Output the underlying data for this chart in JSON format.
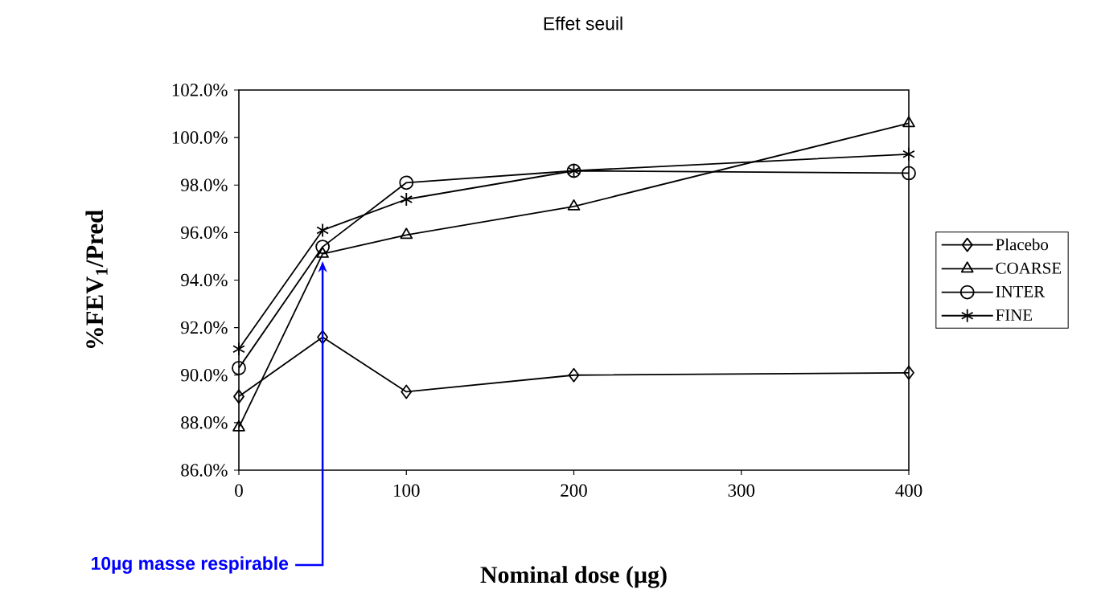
{
  "chart_data": {
    "type": "line",
    "title": "Effet seuil",
    "xlabel": "Nominal dose (µg)",
    "ylabel": "%FEV$_{1}$/Pred",
    "x": [
      0,
      50,
      100,
      200,
      400
    ],
    "series": [
      {
        "name": "Placebo",
        "color": "#000000",
        "marker": "diamond",
        "values": [
          89.1,
          91.6,
          89.3,
          90.0,
          90.1
        ]
      },
      {
        "name": "COARSE",
        "color": "#000000",
        "marker": "triangle",
        "values": [
          87.8,
          95.1,
          95.9,
          97.1,
          100.6
        ]
      },
      {
        "name": "INTER",
        "color": "#000000",
        "marker": "circle",
        "values": [
          90.3,
          95.4,
          98.1,
          98.6,
          98.5
        ]
      },
      {
        "name": "FINE",
        "color": "#000000",
        "marker": "cross",
        "values": [
          91.1,
          96.1,
          97.4,
          98.6,
          99.3
        ]
      }
    ],
    "xlim": [
      0,
      400
    ],
    "xticks": [
      0,
      100,
      200,
      300,
      400
    ],
    "ylim": [
      86,
      102
    ],
    "yticks": [
      {
        "value": 86,
        "label": "86.0%"
      },
      {
        "value": 88,
        "label": "88.0%"
      },
      {
        "value": 90,
        "label": "90.0%"
      },
      {
        "value": 92,
        "label": "92.0%"
      },
      {
        "value": 94,
        "label": "94.0%"
      },
      {
        "value": 96,
        "label": "96.0%"
      },
      {
        "value": 98,
        "label": "98.0%"
      },
      {
        "value": 100,
        "label": "100.0%"
      },
      {
        "value": 102,
        "label": "102.0%"
      }
    ],
    "annotations": [
      {
        "text": "10µg masse respirable",
        "x": 50,
        "y": 94.8
      }
    ],
    "legend": "right",
    "line_style": "solid"
  }
}
